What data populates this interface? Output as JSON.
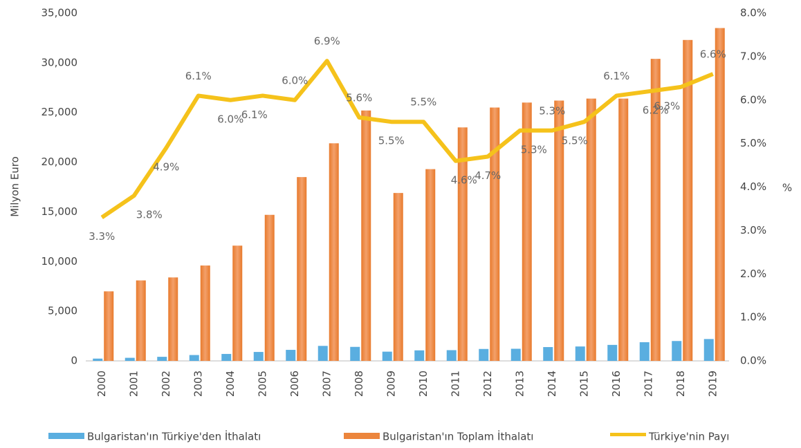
{
  "chart_data": {
    "type": "bar-line",
    "y_label": "Milyon Euro",
    "y2_label": "%",
    "categories": [
      "2000",
      "2001",
      "2002",
      "2003",
      "2004",
      "2005",
      "2006",
      "2007",
      "2008",
      "2009",
      "2010",
      "2011",
      "2012",
      "2013",
      "2014",
      "2015",
      "2016",
      "2017",
      "2018",
      "2019"
    ],
    "series": [
      {
        "name": "Bulgaristan'ın Türkiye'den İthalatı",
        "color": "#5aaee0",
        "type": "bar",
        "axis": "y",
        "values": [
          230,
          310,
          410,
          590,
          700,
          900,
          1110,
          1510,
          1410,
          930,
          1060,
          1080,
          1200,
          1220,
          1390,
          1450,
          1610,
          1880,
          2000,
          2200
        ]
      },
      {
        "name": "Bulgaristan'ın Toplam İthalatı",
        "color": "#ec853c",
        "type": "bar",
        "axis": "y",
        "values": [
          7000,
          8100,
          8400,
          9600,
          11600,
          14700,
          18500,
          21900,
          25200,
          16900,
          19300,
          23500,
          25500,
          26000,
          26200,
          26400,
          26400,
          30400,
          32300,
          33500
        ]
      },
      {
        "name": "Türkiye'nin Payı",
        "color": "#f5c21b",
        "type": "line",
        "axis": "y2",
        "values": [
          3.3,
          3.8,
          4.9,
          6.1,
          6.0,
          6.1,
          6.0,
          6.9,
          5.6,
          5.5,
          5.5,
          4.6,
          4.7,
          5.3,
          5.3,
          5.5,
          6.1,
          6.2,
          6.3,
          6.6
        ],
        "value_labels": [
          "3.3%",
          "3.8%",
          "4.9%",
          "6.1%",
          "6.0%",
          "6.1%",
          "6.0%",
          "6.9%",
          "5.6%",
          "5.5%",
          "5.5%",
          "4.6%",
          "4.7%",
          "5.3%",
          "5.3%",
          "5.5%",
          "6.1%",
          "6.2%",
          "6.3%",
          "6.6%"
        ]
      }
    ],
    "ylim": [
      0,
      35000
    ],
    "yticks": [
      0,
      {
        "value": 5000,
        "label": "5,000"
      },
      {
        "value": 10000,
        "label": "10,000"
      },
      {
        "value": 15000,
        "label": "15,000"
      },
      {
        "value": 20000,
        "label": "20,000"
      },
      {
        "value": 25000,
        "label": "25,000"
      },
      {
        "value": 30000,
        "label": "30,000"
      },
      {
        "value": 35000,
        "label": "35,000"
      }
    ],
    "y2lim": [
      0,
      8
    ],
    "y2ticks": [
      {
        "value": 0,
        "label": "0.0%"
      },
      {
        "value": 1,
        "label": "1.0%"
      },
      {
        "value": 2,
        "label": "2.0%"
      },
      {
        "value": 3,
        "label": "3.0%"
      },
      {
        "value": 4,
        "label": "4.0%"
      },
      {
        "value": 5,
        "label": "5.0%"
      },
      {
        "value": 6,
        "label": "6.0%"
      },
      {
        "value": 7,
        "label": "7.0%"
      },
      {
        "value": 8,
        "label": "8.0%"
      }
    ],
    "legend": "bottom"
  }
}
